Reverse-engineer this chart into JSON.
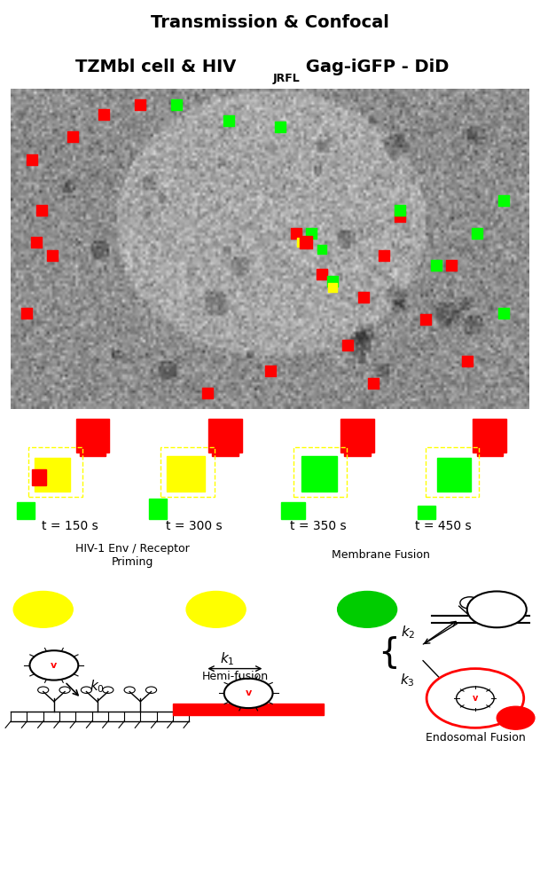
{
  "title_line1": "Transmission & Confocal",
  "title_line2": "TZMbl cell & HIV",
  "title_subscript": "JRFL",
  "title_suffix": " Gag-iGFP - DiD",
  "timepoints": [
    "t = 150 s",
    "t = 300 s",
    "t = 350 s",
    "t = 450 s"
  ],
  "label_left": "HIV-1 Env / Receptor\nPriming",
  "label_right": "Membrane Fusion",
  "bg_color": "#000000",
  "white": "#ffffff",
  "red": "#ff0000",
  "green": "#00ff00",
  "yellow": "#ffff00",
  "fig_bg": "#ffffff"
}
